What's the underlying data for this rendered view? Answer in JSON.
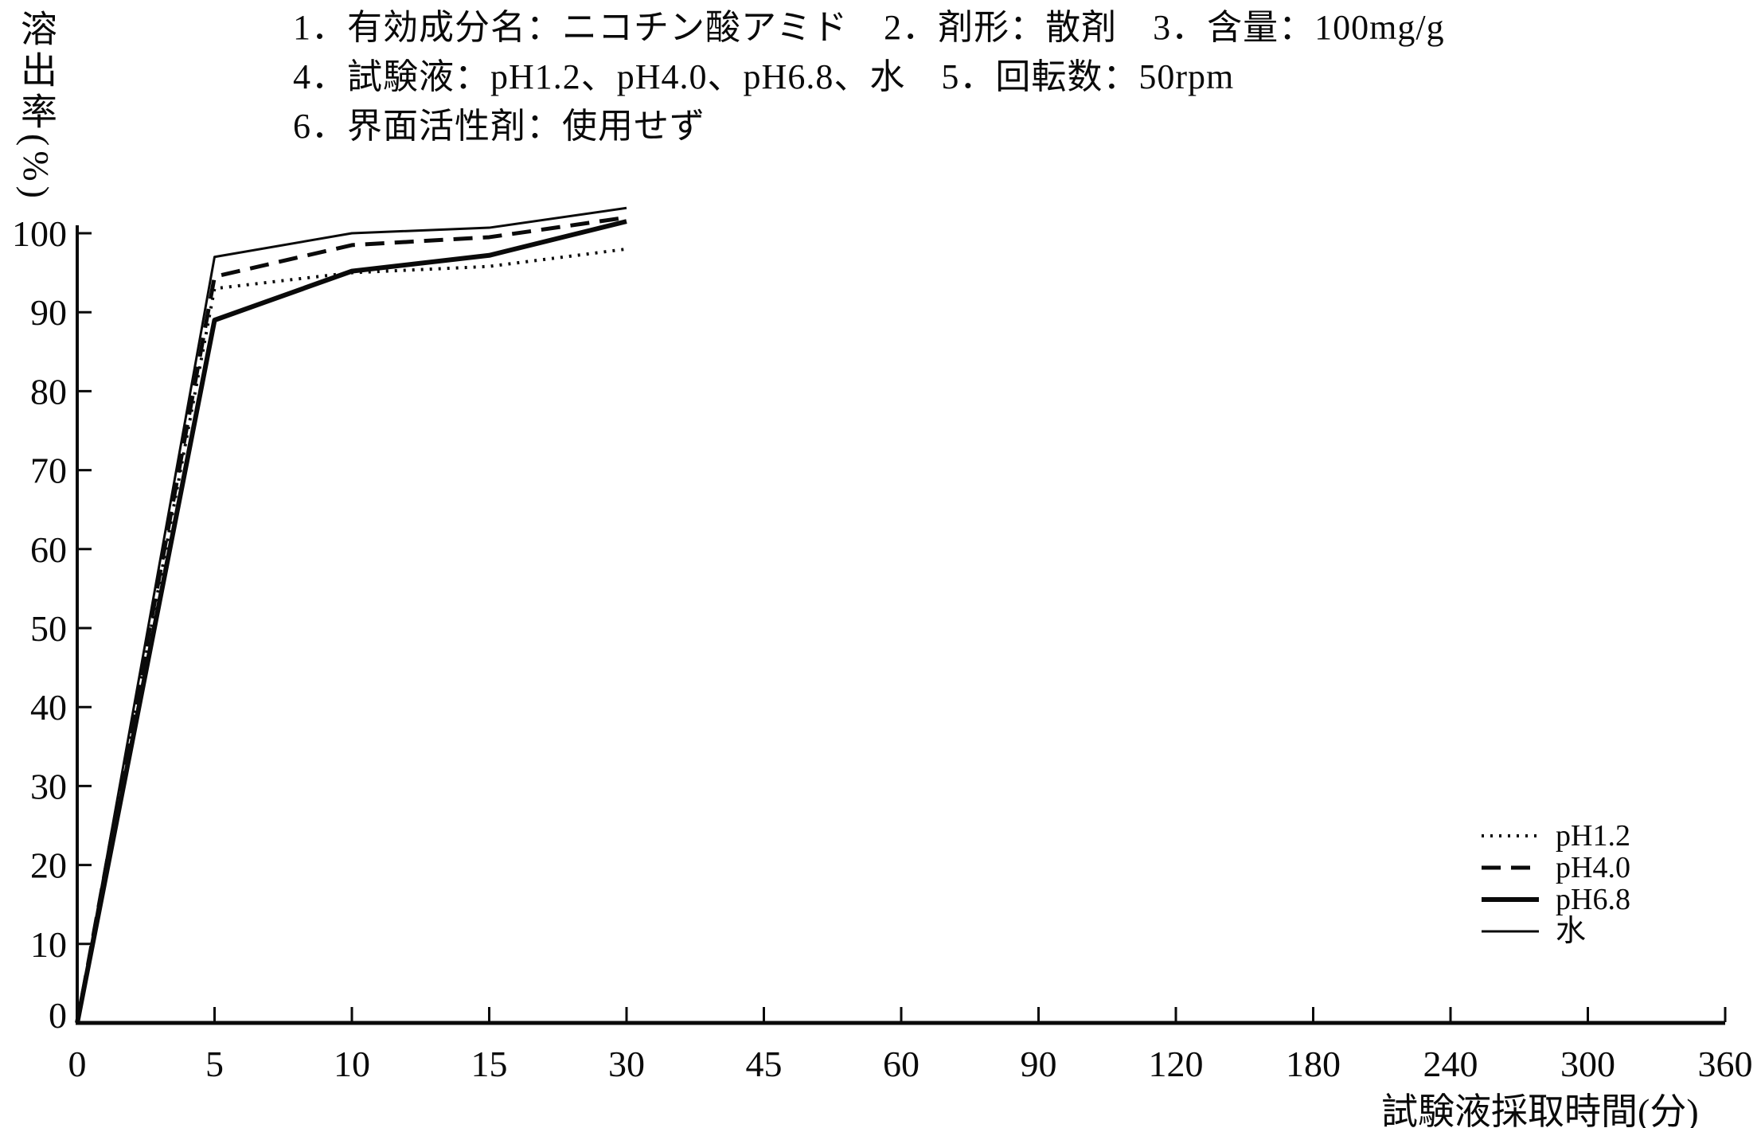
{
  "figure": {
    "background": "#ffffff",
    "ink": "#0a0a0a"
  },
  "header": {
    "line1": "1．有効成分名：ニコチン酸アミド　2．剤形：散剤　3．含量：100mg/g",
    "line2": "4．試験液：pH1.2、pH4.0、pH6.8、水　5．回転数：50rpm",
    "line3": "6．界面活性剤：使用せず"
  },
  "chart_data": {
    "type": "line",
    "title": "",
    "xlabel": "試験液採取時間(分)",
    "ylabel": "溶出率(%)",
    "x_ticks": [
      0,
      5,
      10,
      15,
      30,
      45,
      60,
      90,
      120,
      180,
      240,
      300,
      360
    ],
    "x_axis_spacing": "equal spacing per tick (non-linear time axis)",
    "y_ticks": [
      0,
      10,
      20,
      30,
      40,
      50,
      60,
      70,
      80,
      90,
      100
    ],
    "ylim": [
      0,
      100
    ],
    "grid": false,
    "legend_position": "lower-right",
    "sample_times_min": [
      0,
      5,
      10,
      15,
      30
    ],
    "series": [
      {
        "name": "pH1.2",
        "style": "dotted",
        "values": [
          0,
          93,
          95,
          95.8,
          98
        ]
      },
      {
        "name": "pH4.0",
        "style": "dashed",
        "values": [
          0,
          94.5,
          98.5,
          99.5,
          102
        ]
      },
      {
        "name": "pH6.8",
        "style": "solid-thick",
        "values": [
          0,
          89,
          95.2,
          97.2,
          101.5
        ]
      },
      {
        "name": "水",
        "style": "solid-thin",
        "values": [
          0,
          97,
          100,
          100.7,
          103.2
        ]
      }
    ]
  }
}
